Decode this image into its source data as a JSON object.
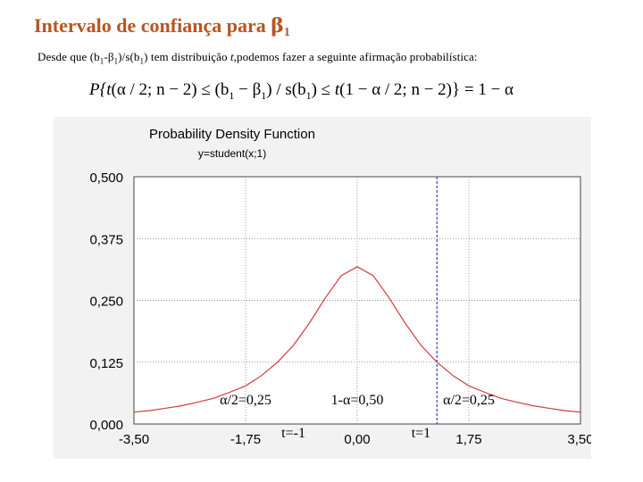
{
  "header": {
    "title_text": "Intervalo de confiança para ",
    "title_symbol": "β",
    "title_subscript": "1"
  },
  "intro": {
    "prefix": "Desde que (b",
    "sub1": "1",
    "mid1": "-β",
    "sub2": "1",
    "mid2": ")/s(b",
    "sub3": "1",
    "mid3": ") tem distribuição ",
    "t_italic": "t",
    "suffix": ",podemos fazer a seguinte afirmação probabilística:"
  },
  "formula": {
    "p1": "P{",
    "t1": "t",
    "p2": "(α / 2; n − 2) ≤ (b",
    "s1": "1",
    "p3": " − β",
    "s2": "1",
    "p4": ") / s(b",
    "s3": "1",
    "p5": ") ≤ ",
    "t2": "t",
    "p6": "(1 − α / 2; n − 2)} = 1 − α"
  },
  "chart_data": {
    "type": "line",
    "title": "Probability Density Function",
    "subtitle": "y=student(x;1)",
    "xlabel": "",
    "ylabel": "",
    "xlim": [
      -3.5,
      3.5
    ],
    "ylim": [
      0,
      0.5
    ],
    "x_ticks": [
      "-3,50",
      "-1,75",
      "0,00",
      "1,75",
      "3,50"
    ],
    "x_tick_values": [
      -3.5,
      -1.75,
      0,
      1.75,
      3.5
    ],
    "y_ticks": [
      "0,000",
      "0,125",
      "0,250",
      "0,375",
      "0,500"
    ],
    "y_tick_values": [
      0,
      0.125,
      0.25,
      0.375,
      0.5
    ],
    "grid": true,
    "series": [
      {
        "values_x": [
          -3.5,
          -3.25,
          -3.0,
          -2.75,
          -2.5,
          -2.25,
          -2.0,
          -1.75,
          -1.5,
          -1.25,
          -1.0,
          -0.75,
          -0.5,
          -0.25,
          0.0,
          0.25,
          0.5,
          0.75,
          1.0,
          1.25,
          1.5,
          1.75,
          2.0,
          2.25,
          2.5,
          2.75,
          3.0,
          3.25,
          3.5
        ],
        "values_y": [
          0.024,
          0.027,
          0.032,
          0.037,
          0.044,
          0.052,
          0.064,
          0.077,
          0.098,
          0.125,
          0.159,
          0.204,
          0.255,
          0.3,
          0.318,
          0.3,
          0.255,
          0.204,
          0.159,
          0.125,
          0.098,
          0.077,
          0.064,
          0.052,
          0.044,
          0.037,
          0.032,
          0.027,
          0.024
        ],
        "color": "#d43a3a"
      }
    ],
    "reference_line": {
      "x": 1.25,
      "style": "dashed",
      "color": "#3a3ad4"
    },
    "annotations": [
      {
        "text": "α/2=0,25",
        "x": -1.75,
        "y": 0.04
      },
      {
        "text": "1-α=0,50",
        "x": 0.0,
        "y": 0.04
      },
      {
        "text": "α/2=0,25",
        "x": 1.75,
        "y": 0.04
      },
      {
        "text": "t=-1",
        "x": -1.0,
        "y": -0.027
      },
      {
        "text": "t=1",
        "x": 1.0,
        "y": -0.027
      }
    ],
    "colors": {
      "curve": "#d43a3a",
      "dashed_line": "#3a3ad4",
      "panel_bg": "#f2f2f2",
      "plot_bg": "#ffffff",
      "title_color": "#b8551f"
    }
  }
}
